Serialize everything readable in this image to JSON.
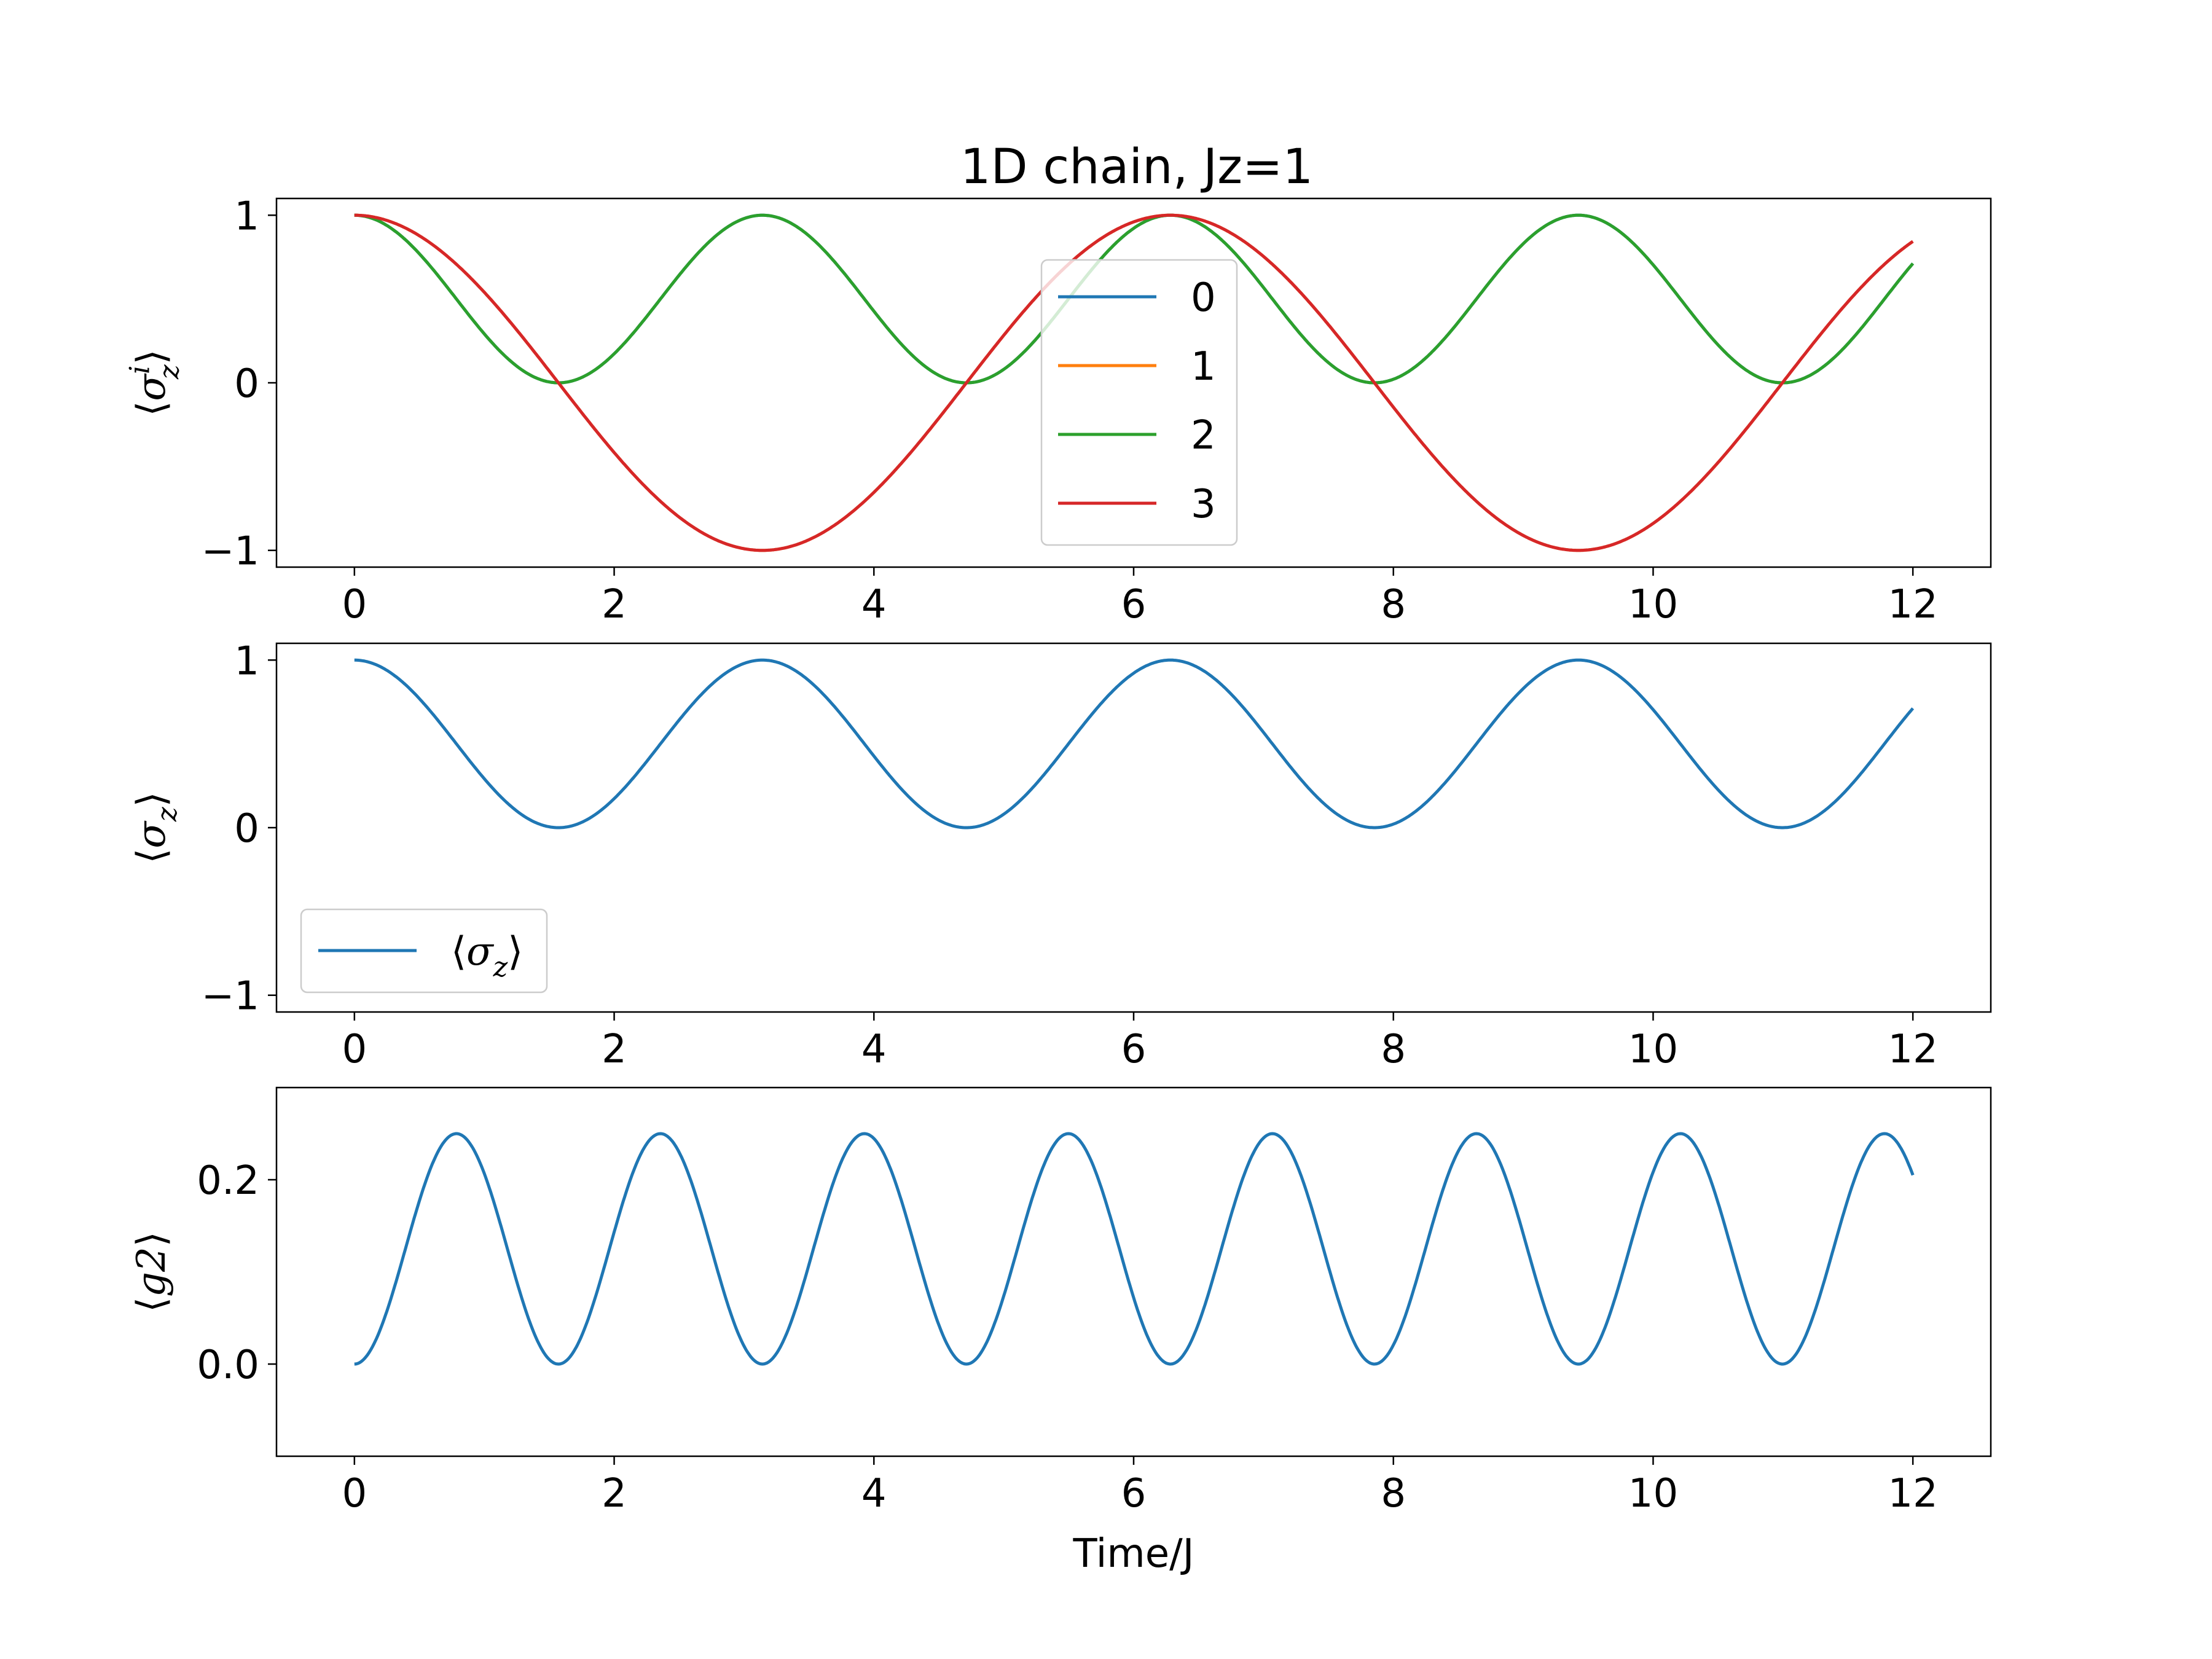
{
  "chart_data": [
    {
      "type": "line",
      "title": "1D chain, Jz=1",
      "ylabel": "⟨σ_z^i⟩",
      "xlabel": "",
      "xlim": [
        -0.6,
        12.6
      ],
      "ylim": [
        -1.1,
        1.1
      ],
      "xticks": [
        "0",
        "2",
        "4",
        "6",
        "8",
        "10",
        "12"
      ],
      "yticks": [
        "−1",
        "0",
        "1"
      ],
      "grid": false,
      "legend": "center",
      "series": [
        {
          "name": "0",
          "color": "#1f77b4",
          "x": [
            0,
            1.571,
            3.142,
            4.712,
            6.283,
            7.854,
            9.425,
            10.996,
            12
          ],
          "y": [
            1,
            0,
            1,
            0,
            1,
            0,
            1,
            0,
            0.71
          ]
        },
        {
          "name": "1",
          "color": "#ff7f0e",
          "x": [
            0,
            1.571,
            3.142,
            4.712,
            6.283,
            7.854,
            9.425,
            10.996,
            12
          ],
          "y": [
            1,
            0,
            -1,
            0,
            1,
            0,
            -1,
            0,
            0.84
          ]
        },
        {
          "name": "2",
          "color": "#2ca02c",
          "x": [
            0,
            1.571,
            3.142,
            4.712,
            6.283,
            7.854,
            9.425,
            10.996,
            12
          ],
          "y": [
            1,
            0,
            1,
            0,
            1,
            0,
            1,
            0,
            0.71
          ]
        },
        {
          "name": "3",
          "color": "#d62728",
          "x": [
            0,
            1.571,
            3.142,
            4.712,
            6.283,
            7.854,
            9.425,
            10.996,
            12
          ],
          "y": [
            1,
            0,
            -1,
            0,
            1,
            0,
            -1,
            0,
            0.84
          ]
        }
      ]
    },
    {
      "type": "line",
      "title": "",
      "ylabel": "⟨σ_z⟩",
      "xlabel": "",
      "xlim": [
        -0.6,
        12.6
      ],
      "ylim": [
        -1.1,
        1.1
      ],
      "xticks": [
        "0",
        "2",
        "4",
        "6",
        "8",
        "10",
        "12"
      ],
      "yticks": [
        "−1",
        "0",
        "1"
      ],
      "grid": false,
      "legend": "lower-left",
      "series": [
        {
          "name": "⟨σ_z⟩",
          "color": "#1f77b4",
          "x": [
            0,
            1.571,
            3.142,
            4.712,
            6.283,
            7.854,
            9.425,
            10.996,
            12
          ],
          "y": [
            1,
            0,
            1,
            0,
            1,
            0,
            1,
            0,
            0.71
          ]
        }
      ]
    },
    {
      "type": "line",
      "title": "",
      "ylabel": "⟨g2⟩",
      "xlabel": "Time/J",
      "xlim": [
        -0.6,
        12.6
      ],
      "ylim": [
        -0.1,
        0.3
      ],
      "xticks": [
        "0",
        "2",
        "4",
        "6",
        "8",
        "10",
        "12"
      ],
      "yticks": [
        "0.0",
        "0.2"
      ],
      "grid": false,
      "legend": "none",
      "series": [
        {
          "name": "",
          "color": "#1f77b4",
          "x": [
            0,
            0.785,
            1.571,
            2.356,
            3.142,
            3.927,
            4.712,
            5.498,
            6.283,
            7.069,
            7.854,
            8.639,
            9.425,
            10.21,
            10.996,
            11.781,
            12
          ],
          "y": [
            0,
            0.25,
            0,
            0.25,
            0,
            0.25,
            0,
            0.25,
            0,
            0.25,
            0,
            0.25,
            0,
            0.25,
            0,
            0.25,
            0.205
          ]
        }
      ]
    }
  ]
}
